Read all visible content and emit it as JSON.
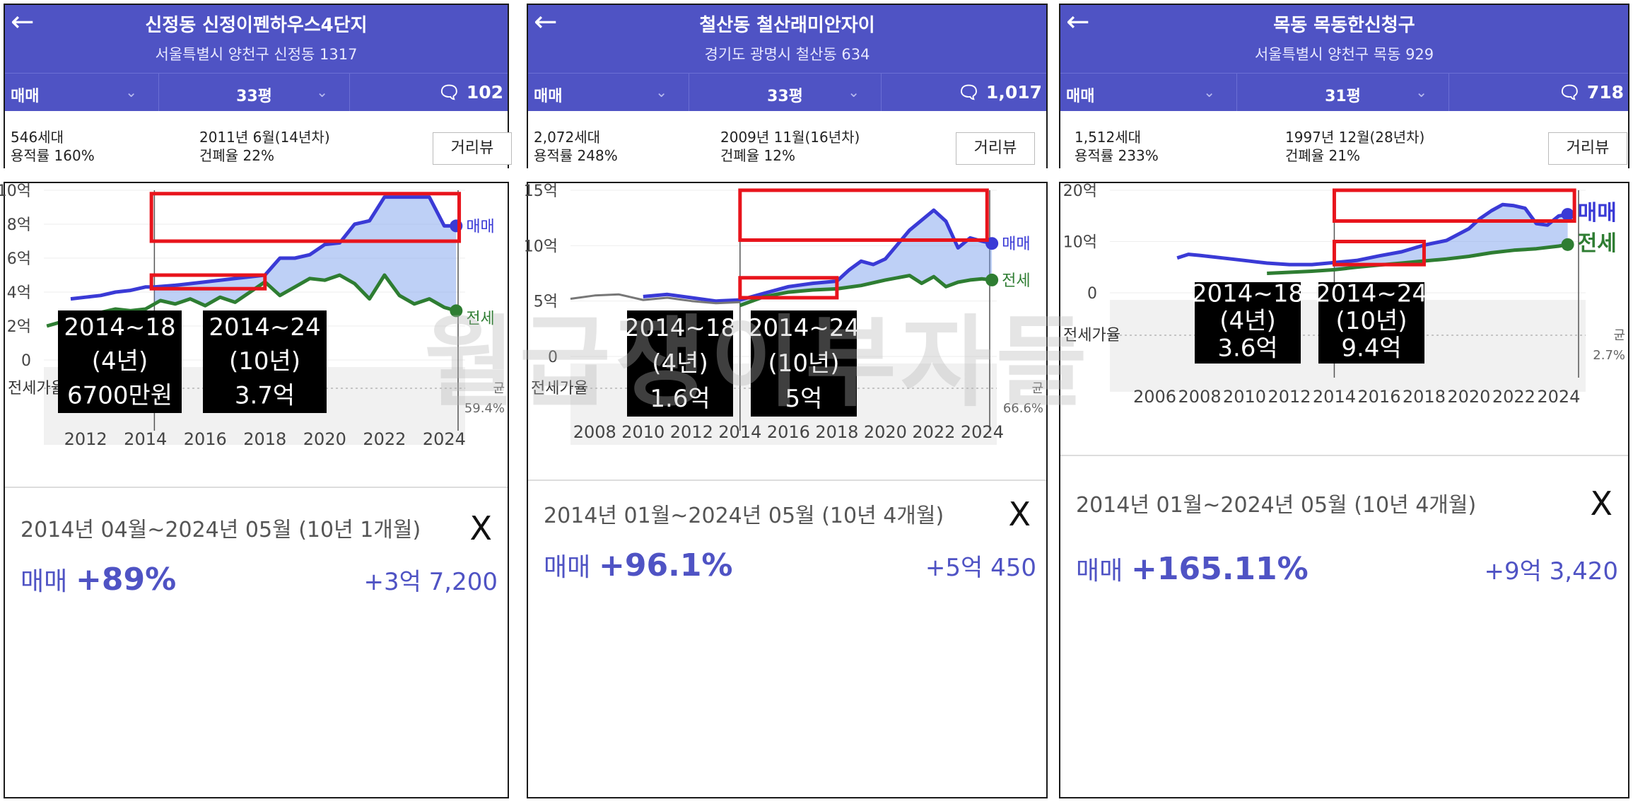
{
  "watermark": "월급쟁이부자들",
  "panels": [
    {
      "title": "신정동 신정이펜하우스4단지",
      "address": "서울특별시 양천구 신정동 1317",
      "trade_type": "매매",
      "size": "33평",
      "comments": "102",
      "households": "546세대",
      "floor_area_ratio": "용적률 160%",
      "built": "2011년 6월(14년차)",
      "coverage": "건폐율 22%",
      "distance_button": "거리뷰",
      "period": "2014년 04월~2024년 05월 (10년 1개월)",
      "close": "X",
      "result_kind": "매매",
      "result_pct": "+89%",
      "result_amount": "+3억 7,200",
      "chart_data": {
        "type": "line",
        "y_unit": "억",
        "y_ticks": [
          "10억",
          "8억",
          "6억",
          "4억",
          "2억",
          "0"
        ],
        "ylim": [
          0,
          10
        ],
        "x_ticks": [
          "2012",
          "2014",
          "2016",
          "2018",
          "2020",
          "2022",
          "2024"
        ],
        "xlim": [
          2010.6,
          2024.7
        ],
        "selection_start": 2014.3,
        "series": [
          {
            "name": "매매",
            "color": "#3a3ad6",
            "x": [
              2011.5,
              2012.0,
              2012.5,
              2013.0,
              2013.5,
              2014.0,
              2014.3,
              2015.0,
              2016.0,
              2017.0,
              2017.5,
              2018.0,
              2018.5,
              2019.0,
              2019.5,
              2020.0,
              2020.5,
              2021.0,
              2021.5,
              2022.0,
              2022.5,
              2023.0,
              2023.5,
              2024.0,
              2024.4
            ],
            "values": [
              3.6,
              3.7,
              3.8,
              4.0,
              4.1,
              4.3,
              4.3,
              4.4,
              4.6,
              4.8,
              4.9,
              5.0,
              6.0,
              6.0,
              6.2,
              6.8,
              6.9,
              8.0,
              8.2,
              9.6,
              9.6,
              9.6,
              9.6,
              7.9,
              7.9
            ]
          },
          {
            "name": "전세",
            "color": "#2e7d32",
            "x": [
              2010.7,
              2011.5,
              2012.0,
              2012.5,
              2013.0,
              2013.5,
              2014.0,
              2014.5,
              2015.0,
              2015.5,
              2016.0,
              2016.5,
              2017.0,
              2017.5,
              2018.0,
              2018.5,
              2019.0,
              2019.5,
              2020.0,
              2020.5,
              2021.0,
              2021.5,
              2022.0,
              2022.5,
              2023.0,
              2023.5,
              2024.0,
              2024.4
            ],
            "values": [
              2.0,
              2.4,
              2.7,
              2.8,
              3.0,
              2.9,
              3.0,
              3.5,
              3.3,
              3.6,
              3.2,
              3.7,
              3.4,
              4.0,
              4.6,
              3.8,
              4.3,
              4.8,
              4.7,
              5.0,
              4.5,
              3.6,
              5.0,
              3.8,
              3.3,
              3.6,
              3.1,
              2.9
            ]
          }
        ],
        "series_labels": [
          "매매",
          "전세"
        ],
        "ratio_label": "전세가율",
        "ratio_value": "59.4%",
        "ratio_suffix": "균",
        "annotations": [
          {
            "lines": [
              "2014~18",
              "(4년)",
              "6700만원"
            ]
          },
          {
            "lines": [
              "2014~24",
              "(10년)",
              "3.7억"
            ]
          }
        ]
      }
    },
    {
      "title": "철산동 철산래미안자이",
      "address": "경기도 광명시 철산동 634",
      "trade_type": "매매",
      "size": "33평",
      "comments": "1,017",
      "households": "2,072세대",
      "floor_area_ratio": "용적률 248%",
      "built": "2009년 11월(16년차)",
      "coverage": "건폐율 12%",
      "distance_button": "거리뷰",
      "period": "2014년 01월~2024년 05월 (10년 4개월)",
      "close": "X",
      "result_kind": "매매",
      "result_pct": "+96.1%",
      "result_amount": "+5억 450",
      "chart_data": {
        "type": "line",
        "y_unit": "억",
        "y_ticks": [
          "15억",
          "10억",
          "5억",
          "0"
        ],
        "ylim": [
          0,
          15
        ],
        "x_ticks": [
          "2008",
          "2010",
          "2012",
          "2014",
          "2016",
          "2018",
          "2020",
          "2022",
          "2024"
        ],
        "xlim": [
          2007.0,
          2024.6
        ],
        "selection_start": 2014.0,
        "series": [
          {
            "name": "매매",
            "color": "#3a3ad6",
            "x": [
              2010.0,
              2011.0,
              2012.0,
              2013.0,
              2014.0,
              2015.0,
              2016.0,
              2017.0,
              2018.0,
              2018.5,
              2019.0,
              2019.5,
              2020.0,
              2020.5,
              2021.0,
              2021.5,
              2022.0,
              2022.5,
              2023.0,
              2023.5,
              2024.0,
              2024.4
            ],
            "values": [
              5.4,
              5.6,
              5.3,
              5.0,
              5.1,
              5.7,
              6.3,
              6.6,
              6.8,
              7.8,
              8.6,
              8.3,
              8.8,
              10.1,
              11.4,
              12.3,
              13.2,
              12.2,
              9.8,
              10.7,
              10.4,
              10.2
            ]
          },
          {
            "name": "전세",
            "color": "#2e7d32",
            "x": [
              2014.0,
              2015.0,
              2016.0,
              2017.0,
              2018.0,
              2019.0,
              2020.0,
              2021.0,
              2021.5,
              2022.0,
              2022.5,
              2023.0,
              2023.5,
              2024.0,
              2024.4
            ],
            "values": [
              4.6,
              5.4,
              5.8,
              6.0,
              6.1,
              6.4,
              6.9,
              7.3,
              6.6,
              7.2,
              6.3,
              6.7,
              6.9,
              7.0,
              6.9
            ]
          },
          {
            "name": "",
            "color": "#777777",
            "x": [
              2007.0,
              2008.0,
              2009.0,
              2010.0,
              2011.0,
              2012.0,
              2013.0,
              2014.0
            ],
            "values": [
              5.2,
              5.5,
              5.6,
              5.1,
              5.3,
              5.0,
              4.8,
              4.9
            ]
          }
        ],
        "series_labels": [
          "매매",
          "전세"
        ],
        "ratio_label": "전세가율",
        "ratio_value": "66.6%",
        "ratio_suffix": "균",
        "annotations": [
          {
            "lines": [
              "2014~18",
              "(4년)",
              "1.6억"
            ]
          },
          {
            "lines": [
              "2014~24",
              "(10년)",
              "5억"
            ]
          }
        ]
      }
    },
    {
      "title": "목동 목동한신청구",
      "address": "서울특별시 양천구 목동 929",
      "trade_type": "매매",
      "size": "31평",
      "comments": "718",
      "households": "1,512세대",
      "floor_area_ratio": "용적률 233%",
      "built": "1997년 12월(28년차)",
      "coverage": "건폐율 21%",
      "distance_button": "거리뷰",
      "period": "2014년 01월~2024년 05월 (10년 4개월)",
      "close": "X",
      "result_kind": "매매",
      "result_pct": "+165.11%",
      "result_amount": "+9억 3,420",
      "chart_data": {
        "type": "line",
        "y_unit": "억",
        "y_ticks": [
          "20억",
          "10억",
          "0"
        ],
        "ylim": [
          0,
          20
        ],
        "x_ticks": [
          "2006",
          "2008",
          "2010",
          "2012",
          "2014",
          "2016",
          "2018",
          "2020",
          "2022",
          "2024"
        ],
        "xlim": [
          2004.0,
          2025.2
        ],
        "selection_start": 2014.0,
        "series": [
          {
            "name": "매매",
            "color": "#3a3ad6",
            "x": [
              2007.0,
              2007.5,
              2008.0,
              2009.0,
              2010.0,
              2011.0,
              2012.0,
              2013.0,
              2014.0,
              2015.0,
              2016.0,
              2017.0,
              2018.0,
              2019.0,
              2020.0,
              2020.5,
              2021.0,
              2021.5,
              2022.0,
              2022.5,
              2023.0,
              2023.5,
              2024.0,
              2024.4
            ],
            "values": [
              6.8,
              7.5,
              7.3,
              6.8,
              6.3,
              5.8,
              5.5,
              5.5,
              5.9,
              6.3,
              7.2,
              8.0,
              9.3,
              10.2,
              12.5,
              14.5,
              16.0,
              17.2,
              17.0,
              16.5,
              13.5,
              13.2,
              15.0,
              15.3
            ]
          },
          {
            "name": "전세",
            "color": "#2e7d32",
            "x": [
              2011.0,
              2012.0,
              2013.0,
              2014.0,
              2015.0,
              2016.0,
              2017.0,
              2018.0,
              2019.0,
              2020.0,
              2021.0,
              2022.0,
              2023.0,
              2024.0,
              2024.4
            ],
            "values": [
              3.8,
              4.0,
              4.2,
              4.5,
              5.0,
              5.4,
              5.8,
              6.2,
              6.6,
              7.1,
              7.8,
              8.3,
              8.6,
              9.1,
              9.4
            ]
          }
        ],
        "series_labels": [
          "매매",
          "전세"
        ],
        "ratio_label": "전세가율",
        "ratio_value": "2.7%",
        "ratio_suffix": "균",
        "annotations": [
          {
            "lines": [
              "2014~18",
              "(4년)",
              "3.6억"
            ]
          },
          {
            "lines": [
              "2014~24",
              "(10년)",
              "9.4억"
            ]
          }
        ]
      }
    }
  ]
}
